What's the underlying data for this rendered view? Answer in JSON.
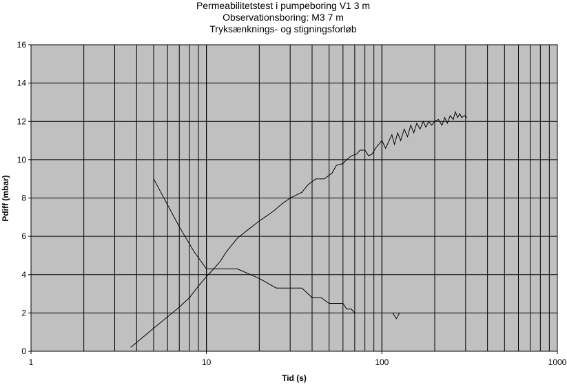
{
  "chart_data": {
    "type": "line",
    "title_lines": [
      "Permeabilitetstest i pumpeboring V1 3 m",
      "Observationsboring: M3 7 m",
      "Tryksænknings- og stigningsforløb"
    ],
    "xlabel": "Tid (s)",
    "ylabel": "Pdiff (mbar)",
    "x_scale": "log",
    "xlim": [
      1,
      1000
    ],
    "ylim": [
      0,
      16
    ],
    "x_ticks": [
      1,
      10,
      100,
      1000
    ],
    "x_tick_labels": [
      "1",
      "10",
      "100",
      "1000"
    ],
    "y_ticks": [
      0,
      2,
      4,
      6,
      8,
      10,
      12,
      14,
      16
    ],
    "y_tick_labels": [
      "0",
      "2",
      "4",
      "6",
      "8",
      "10",
      "12",
      "14",
      "16"
    ],
    "grid": true,
    "plot_background": "#c0c0c0",
    "line_color": "#000000",
    "series": [
      {
        "points": [
          [
            3.7,
            0.2
          ],
          [
            5,
            1.2
          ],
          [
            7,
            2.3
          ],
          [
            8,
            2.8
          ],
          [
            9,
            3.4
          ],
          [
            10,
            3.9
          ],
          [
            11,
            4.3
          ],
          [
            12,
            4.7
          ],
          [
            13,
            5.2
          ],
          [
            15,
            5.9
          ],
          [
            17,
            6.3
          ],
          [
            20,
            6.8
          ],
          [
            24,
            7.3
          ],
          [
            27,
            7.7
          ],
          [
            30,
            8.0
          ],
          [
            35,
            8.3
          ],
          [
            38,
            8.7
          ],
          [
            42,
            9.0
          ],
          [
            47,
            9.0
          ],
          [
            52,
            9.3
          ],
          [
            55,
            9.7
          ],
          [
            60,
            9.8
          ],
          [
            63,
            10.0
          ],
          [
            67,
            10.2
          ],
          [
            72,
            10.3
          ],
          [
            75,
            10.5
          ],
          [
            80,
            10.5
          ],
          [
            84,
            10.2
          ],
          [
            88,
            10.3
          ],
          [
            92,
            10.6
          ],
          [
            96,
            10.8
          ],
          [
            100,
            11.0
          ],
          [
            105,
            10.6
          ],
          [
            110,
            11.0
          ],
          [
            114,
            11.3
          ],
          [
            118,
            10.8
          ],
          [
            123,
            11.4
          ],
          [
            128,
            11.0
          ],
          [
            134,
            11.6
          ],
          [
            140,
            11.2
          ],
          [
            146,
            11.8
          ],
          [
            152,
            11.4
          ],
          [
            158,
            11.9
          ],
          [
            165,
            11.6
          ],
          [
            172,
            12.0
          ],
          [
            178,
            11.7
          ],
          [
            185,
            12.0
          ],
          [
            192,
            11.8
          ],
          [
            200,
            12.0
          ],
          [
            210,
            12.1
          ],
          [
            220,
            11.8
          ],
          [
            228,
            12.2
          ],
          [
            236,
            11.9
          ],
          [
            245,
            12.3
          ],
          [
            255,
            12.1
          ],
          [
            262,
            12.5
          ],
          [
            270,
            12.2
          ],
          [
            278,
            12.4
          ],
          [
            285,
            12.2
          ],
          [
            295,
            12.3
          ],
          [
            305,
            12.2
          ]
        ]
      },
      {
        "points": [
          [
            5,
            9.0
          ],
          [
            7,
            6.5
          ],
          [
            8.5,
            5.2
          ],
          [
            10,
            4.3
          ],
          [
            15,
            4.3
          ],
          [
            20,
            3.8
          ],
          [
            25,
            3.3
          ],
          [
            35,
            3.3
          ],
          [
            40,
            2.8
          ],
          [
            45,
            2.8
          ],
          [
            50,
            2.5
          ],
          [
            60,
            2.5
          ],
          [
            63,
            2.2
          ],
          [
            67,
            2.2
          ],
          [
            70,
            2.0
          ]
        ]
      },
      {
        "points": [
          [
            115,
            2.0
          ],
          [
            121,
            1.7
          ],
          [
            126,
            2.0
          ]
        ]
      }
    ]
  }
}
